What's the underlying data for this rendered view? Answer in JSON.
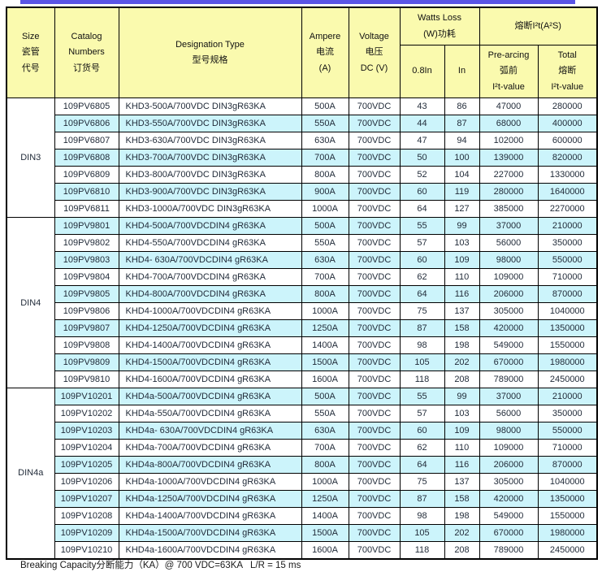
{
  "page": {
    "footer": "Breaking Capacity分断能力（KA）@ 700 VDC=63KA   L/R = 15 ms"
  },
  "colors": {
    "accent_bar": "#5b55e6",
    "header_bg": "#fafaae",
    "row_cyan": "#ccf4fb",
    "row_white": "#ffffff",
    "border": "#000000",
    "body_text": "#1f2937"
  },
  "table": {
    "header": {
      "size": "Size\n瓷管\n代号",
      "catalog": "Catalog\nNumbers\n订货号",
      "designation": "Designation Type\n型号规格",
      "ampere": "Ampere\n电流\n(A)",
      "voltage": "Voltage\n电压\nDC (V)",
      "watts_loss": "Watts Loss\n(W)功耗",
      "i2t": "熔断I²t(A²S)",
      "w08": "0.8In",
      "win": "In",
      "prearcing": "Pre-arcing\n弧前\nI²t-value",
      "total": "Total\n熔断\nI²t-value"
    },
    "sections": [
      {
        "size": "DIN3",
        "rows": [
          [
            "109PV6805",
            "KHD3-500A/700VDC DIN3gR63KA",
            "500A",
            "700VDC",
            "43",
            "86",
            "47000",
            "280000"
          ],
          [
            "109PV6806",
            "KHD3-550A/700VDC DIN3gR63KA",
            "550A",
            "700VDC",
            "44",
            "87",
            "68000",
            "400000"
          ],
          [
            "109PV6807",
            "KHD3-630A/700VDC DIN3gR63KA",
            "630A",
            "700VDC",
            "47",
            "94",
            "102000",
            "600000"
          ],
          [
            "109PV6808",
            "KHD3-700A/700VDC DIN3gR63KA",
            "700A",
            "700VDC",
            "50",
            "100",
            "139000",
            "820000"
          ],
          [
            "109PV6809",
            "KHD3-800A/700VDC DIN3gR63KA",
            "800A",
            "700VDC",
            "52",
            "104",
            "227000",
            "1330000"
          ],
          [
            "109PV6810",
            "KHD3-900A/700VDC DIN3gR63KA",
            "900A",
            "700VDC",
            "60",
            "119",
            "280000",
            "1640000"
          ],
          [
            "109PV6811",
            "KHD3-1000A/700VDC DIN3gR63KA",
            "1000A",
            "700VDC",
            "64",
            "127",
            "385000",
            "2270000"
          ]
        ]
      },
      {
        "size": "DIN4",
        "rows": [
          [
            "109PV9801",
            "KHD4-500A/700VDCDIN4 gR63KA",
            "500A",
            "700VDC",
            "55",
            "99",
            "37000",
            "210000"
          ],
          [
            "109PV9802",
            "KHD4-550A/700VDCDIN4 gR63KA",
            "550A",
            "700VDC",
            "57",
            "103",
            "56000",
            "350000"
          ],
          [
            "109PV9803",
            "KHD4- 630A/700VDCDIN4 gR63KA",
            "630A",
            "700VDC",
            "60",
            "109",
            "98000",
            "550000"
          ],
          [
            "109PV9804",
            "KHD4-700A/700VDCDIN4 gR63KA",
            "700A",
            "700VDC",
            "62",
            "110",
            "109000",
            "710000"
          ],
          [
            "109PV9805",
            "KHD4-800A/700VDCDIN4 gR63KA",
            "800A",
            "700VDC",
            "64",
            "116",
            "206000",
            "870000"
          ],
          [
            "109PV9806",
            "KHD4-1000A/700VDCDIN4 gR63KA",
            "1000A",
            "700VDC",
            "75",
            "137",
            "305000",
            "1040000"
          ],
          [
            "109PV9807",
            "KHD4-1250A/700VDCDIN4 gR63KA",
            "1250A",
            "700VDC",
            "87",
            "158",
            "420000",
            "1350000"
          ],
          [
            "109PV9808",
            "KHD4-1400A/700VDCDIN4 gR63KA",
            "1400A",
            "700VDC",
            "98",
            "198",
            "549000",
            "1550000"
          ],
          [
            "109PV9809",
            "KHD4-1500A/700VDCDIN4 gR63KA",
            "1500A",
            "700VDC",
            "105",
            "202",
            "670000",
            "1980000"
          ],
          [
            "109PV9810",
            "KHD4-1600A/700VDCDIN4 gR63KA",
            "1600A",
            "700VDC",
            "118",
            "208",
            "789000",
            "2450000"
          ]
        ]
      },
      {
        "size": "DIN4a",
        "rows": [
          [
            "109PV10201",
            "KHD4a-500A/700VDCDIN4 gR63KA",
            "500A",
            "700VDC",
            "55",
            "99",
            "37000",
            "210000"
          ],
          [
            "109PV10202",
            "KHD4a-550A/700VDCDIN4 gR63KA",
            "550A",
            "700VDC",
            "57",
            "103",
            "56000",
            "350000"
          ],
          [
            "109PV10203",
            "KHD4a- 630A/700VDCDIN4 gR63KA",
            "630A",
            "700VDC",
            "60",
            "109",
            "98000",
            "550000"
          ],
          [
            "109PV10204",
            "KHD4a-700A/700VDCDIN4 gR63KA",
            "700A",
            "700VDC",
            "62",
            "110",
            "109000",
            "710000"
          ],
          [
            "109PV10205",
            "KHD4a-800A/700VDCDIN4 gR63KA",
            "800A",
            "700VDC",
            "64",
            "116",
            "206000",
            "870000"
          ],
          [
            "109PV10206",
            "KHD4a-1000A/700VDCDIN4 gR63KA",
            "1000A",
            "700VDC",
            "75",
            "137",
            "305000",
            "1040000"
          ],
          [
            "109PV10207",
            "KHD4a-1250A/700VDCDIN4 gR63KA",
            "1250A",
            "700VDC",
            "87",
            "158",
            "420000",
            "1350000"
          ],
          [
            "109PV10208",
            "KHD4a-1400A/700VDCDIN4 gR63KA",
            "1400A",
            "700VDC",
            "98",
            "198",
            "549000",
            "1550000"
          ],
          [
            "109PV10209",
            "KHD4a-1500A/700VDCDIN4 gR63KA",
            "1500A",
            "700VDC",
            "105",
            "202",
            "670000",
            "1980000"
          ],
          [
            "109PV10210",
            "KHD4a-1600A/700VDCDIN4 gR63KA",
            "1600A",
            "700VDC",
            "118",
            "208",
            "789000",
            "2450000"
          ]
        ]
      }
    ]
  }
}
